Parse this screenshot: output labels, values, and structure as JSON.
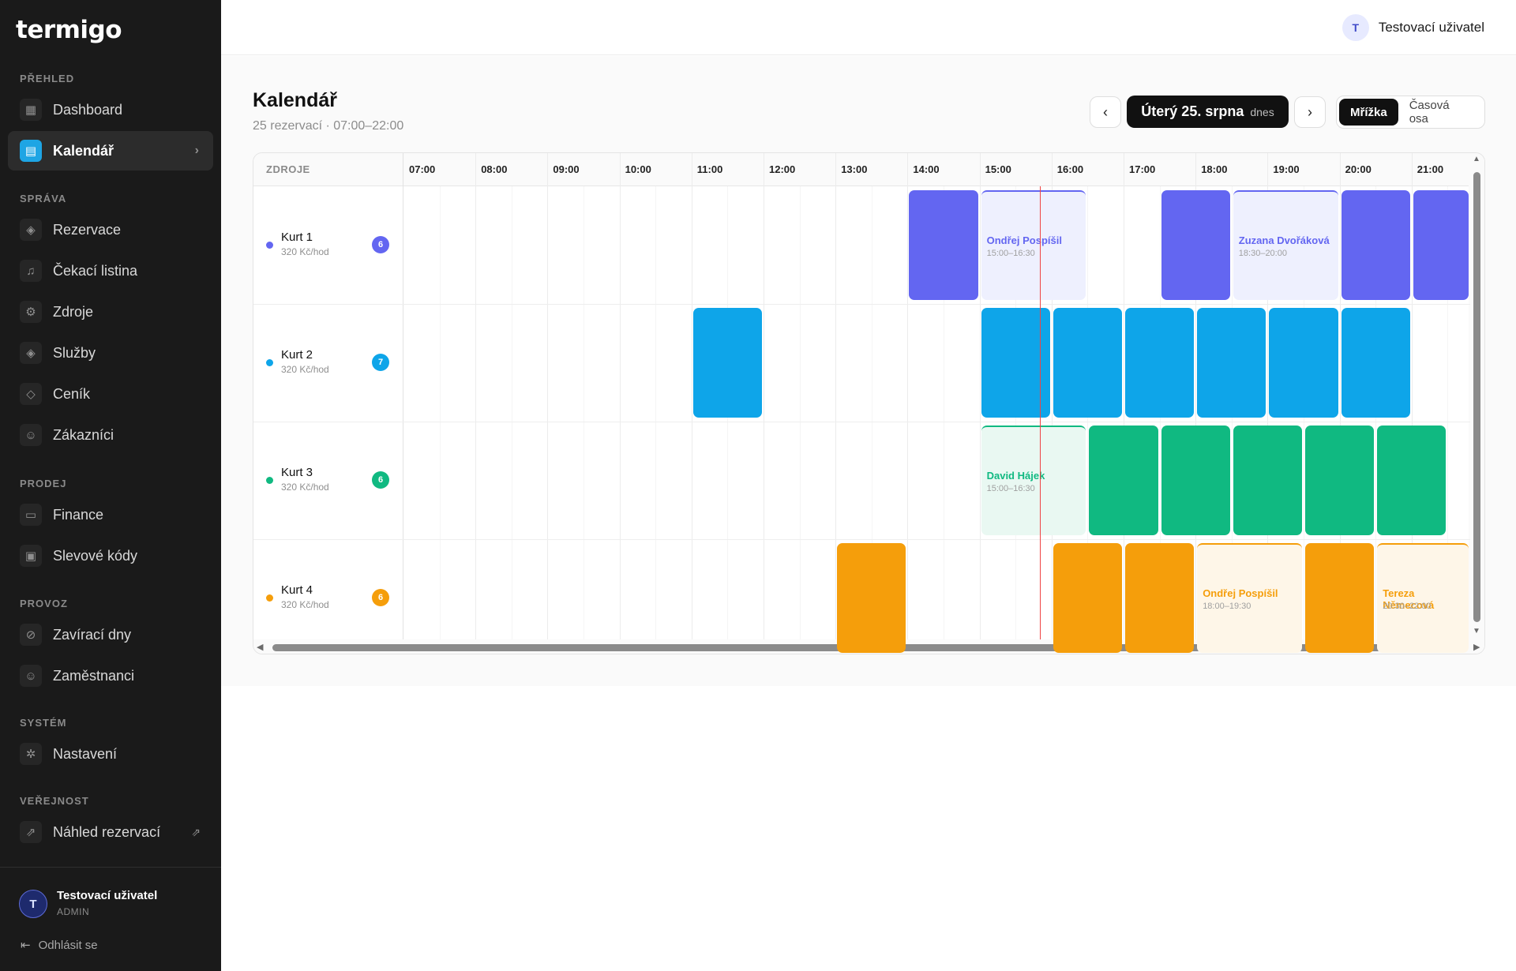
{
  "app": {
    "logo": "termigo"
  },
  "sidebar": {
    "sections": [
      {
        "label": "PŘEHLED",
        "items": [
          {
            "label": "Dashboard",
            "icon": "dashboard-icon",
            "glyph": "▦"
          },
          {
            "label": "Kalendář",
            "icon": "calendar-icon",
            "glyph": "▤",
            "active": true
          }
        ]
      },
      {
        "label": "SPRÁVA",
        "items": [
          {
            "label": "Rezervace",
            "icon": "layers-icon",
            "glyph": "◈"
          },
          {
            "label": "Čekací listina",
            "icon": "bell-icon",
            "glyph": "♫"
          },
          {
            "label": "Zdroje",
            "icon": "resources-icon",
            "glyph": "⚙"
          },
          {
            "label": "Služby",
            "icon": "stack-icon",
            "glyph": "◈"
          },
          {
            "label": "Ceník",
            "icon": "tag-icon",
            "glyph": "◇"
          },
          {
            "label": "Zákazníci",
            "icon": "users-icon",
            "glyph": "☺"
          }
        ]
      },
      {
        "label": "PRODEJ",
        "items": [
          {
            "label": "Finance",
            "icon": "banknote-icon",
            "glyph": "▭"
          },
          {
            "label": "Slevové kódy",
            "icon": "ticket-icon",
            "glyph": "▣"
          }
        ]
      },
      {
        "label": "PROVOZ",
        "items": [
          {
            "label": "Zavírací dny",
            "icon": "ban-icon",
            "glyph": "⊘"
          },
          {
            "label": "Zaměstnanci",
            "icon": "user-cog-icon",
            "glyph": "☺"
          }
        ]
      },
      {
        "label": "SYSTÉM",
        "items": [
          {
            "label": "Nastavení",
            "icon": "settings-icon",
            "glyph": "✲"
          }
        ]
      },
      {
        "label": "VEŘEJNOST",
        "items": [
          {
            "label": "Náhled rezervací",
            "icon": "external-link-icon",
            "glyph": "⇗",
            "external": true
          }
        ]
      }
    ],
    "user": {
      "initial": "T",
      "name": "Testovací uživatel",
      "role": "ADMIN"
    },
    "logout": "Odhlásit se"
  },
  "topbar": {
    "user_initial": "T",
    "user_name": "Testovací uživatel"
  },
  "page": {
    "title": "Kalendář",
    "subtitle": "25 rezervací · 07:00–22:00",
    "date_label": "Úterý 25. srpna",
    "today_label": "dnes",
    "views": [
      {
        "label": "Mřížka",
        "active": true
      },
      {
        "label": "Časová osa",
        "active": false
      }
    ]
  },
  "calendar": {
    "resources_header": "ZDROJE",
    "hours": [
      "07:00",
      "08:00",
      "09:00",
      "10:00",
      "11:00",
      "12:00",
      "13:00",
      "14:00",
      "15:00",
      "16:00",
      "17:00",
      "18:00",
      "19:00",
      "20:00",
      "21:00"
    ],
    "now": "15:50",
    "resources": [
      {
        "name": "Kurt 1",
        "price": "320 Kč/hod",
        "count": "6",
        "color": "#6366f1",
        "pale": "#eef0fe",
        "bookings": [
          {
            "start": "14:00",
            "end": "15:00"
          },
          {
            "start": "15:00",
            "end": "16:30",
            "name": "Ondřej Pospíšil",
            "time": "15:00–16:30"
          },
          {
            "start": "17:30",
            "end": "18:30"
          },
          {
            "start": "18:30",
            "end": "20:00",
            "name": "Zuzana Dvořáková",
            "time": "18:30–20:00"
          },
          {
            "start": "20:00",
            "end": "21:00"
          },
          {
            "start": "21:00",
            "end": "22:00"
          }
        ]
      },
      {
        "name": "Kurt 2",
        "price": "320 Kč/hod",
        "count": "7",
        "color": "#0ea5e9",
        "pale": "#e6f6fd",
        "bookings": [
          {
            "start": "11:00",
            "end": "12:00"
          },
          {
            "start": "15:00",
            "end": "16:00"
          },
          {
            "start": "16:00",
            "end": "17:00"
          },
          {
            "start": "17:00",
            "end": "18:00"
          },
          {
            "start": "18:00",
            "end": "19:00"
          },
          {
            "start": "19:00",
            "end": "20:00"
          },
          {
            "start": "20:00",
            "end": "21:00"
          }
        ]
      },
      {
        "name": "Kurt 3",
        "price": "320 Kč/hod",
        "count": "6",
        "color": "#10b981",
        "pale": "#e9f8f2",
        "bookings": [
          {
            "start": "15:00",
            "end": "16:30",
            "name": "David Hájek",
            "time": "15:00–16:30"
          },
          {
            "start": "16:30",
            "end": "17:30"
          },
          {
            "start": "17:30",
            "end": "18:30"
          },
          {
            "start": "18:30",
            "end": "19:30"
          },
          {
            "start": "19:30",
            "end": "20:30"
          },
          {
            "start": "20:30",
            "end": "21:30"
          }
        ]
      },
      {
        "name": "Kurt 4",
        "price": "320 Kč/hod",
        "count": "6",
        "color": "#f59e0b",
        "pale": "#fef6e8",
        "bookings": [
          {
            "start": "13:00",
            "end": "14:00"
          },
          {
            "start": "16:00",
            "end": "17:00"
          },
          {
            "start": "17:00",
            "end": "18:00"
          },
          {
            "start": "18:00",
            "end": "19:30",
            "name": "Ondřej Pospíšil",
            "time": "18:00–19:30"
          },
          {
            "start": "19:30",
            "end": "20:30"
          },
          {
            "start": "20:30",
            "end": "22:00",
            "name": "Tereza Němecová",
            "time": "20:30–22:00"
          }
        ]
      }
    ]
  }
}
